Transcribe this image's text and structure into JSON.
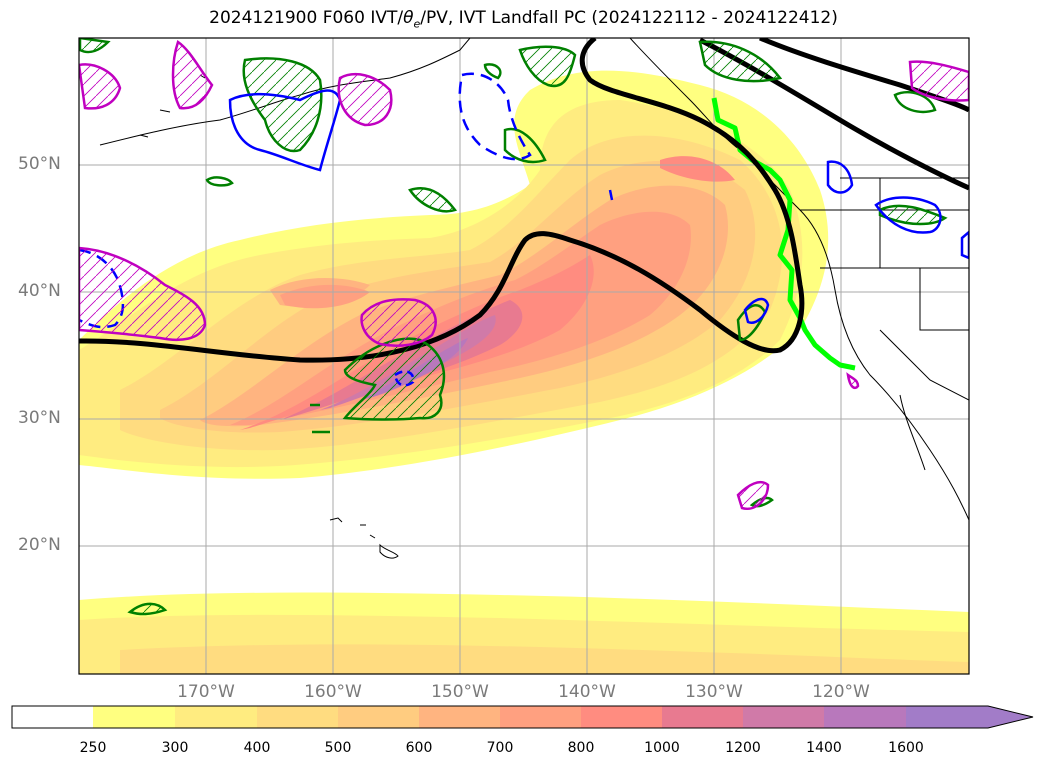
{
  "title_parts": {
    "prefix": "2024121900 F060 IVT/",
    "theta": "θ",
    "sub": "e",
    "suffix": "/PV, IVT Landfall PC (2024122112 - 2024122412)"
  },
  "map": {
    "lat_labels": [
      "50°N",
      "40°N",
      "30°N",
      "20°N"
    ],
    "lon_labels": [
      "170°W",
      "160°W",
      "150°W",
      "140°W",
      "130°W",
      "120°W"
    ],
    "colors": {
      "landfall_line": "#00ff00",
      "pc_contour": "#000000",
      "theta_contour": "#008000",
      "pv_contour": "#0000ff",
      "ivt_hatch": "#c000c0"
    }
  },
  "colorbar": {
    "labels": [
      "250",
      "300",
      "400",
      "500",
      "600",
      "700",
      "800",
      "1000",
      "1200",
      "1400",
      "1600"
    ],
    "colors": [
      "#ffffff",
      "#ffff80",
      "#ffec80",
      "#ffdc80",
      "#ffcc80",
      "#ffb480",
      "#ffa080",
      "#ff8c80",
      "#e87a90",
      "#d07aa8",
      "#b878bc",
      "#a27cc8"
    ],
    "extend": "max"
  }
}
